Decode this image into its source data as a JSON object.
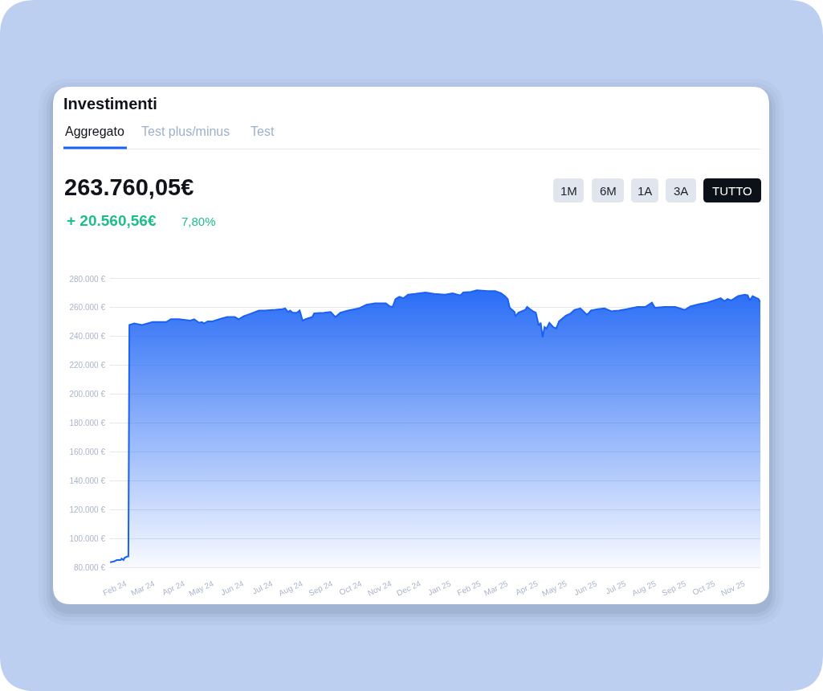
{
  "chart_data": {
    "type": "area",
    "title": "Investimenti",
    "subtitle": "263.760,05€",
    "annotations": [
      "Aggregato",
      "Test plus/minus",
      "Test",
      "+ 20.560,56€",
      "7,80%",
      "1M",
      "6M",
      "1A",
      "3A",
      "TUTTO"
    ],
    "color": "#1a62f5",
    "grid": "y",
    "xlim": [
      "2024-01-16",
      "2025-11-18"
    ],
    "xticks": [
      {
        "value": "2024-02-01",
        "label": "Feb 24"
      },
      {
        "value": "2024-03-01",
        "label": "Mar 24"
      },
      {
        "value": "2024-04-01",
        "label": "Apr 24"
      },
      {
        "value": "2024-05-01",
        "label": "May 24"
      },
      {
        "value": "2024-06-01",
        "label": "Jun 24"
      },
      {
        "value": "2024-07-01",
        "label": "Jul 24"
      },
      {
        "value": "2024-08-01",
        "label": "Aug 24"
      },
      {
        "value": "2024-09-01",
        "label": "Sep 24"
      },
      {
        "value": "2024-10-01",
        "label": "Oct 24"
      },
      {
        "value": "2024-11-01",
        "label": "Nov 24"
      },
      {
        "value": "2024-12-01",
        "label": "Dec 24"
      },
      {
        "value": "2025-01-01",
        "label": "Jan 25"
      },
      {
        "value": "2025-02-01",
        "label": "Feb 25"
      },
      {
        "value": "2025-03-01",
        "label": "Mar 25"
      },
      {
        "value": "2025-04-01",
        "label": "Apr 25"
      },
      {
        "value": "2025-05-01",
        "label": "May 25"
      },
      {
        "value": "2025-06-01",
        "label": "Jun 25"
      },
      {
        "value": "2025-07-01",
        "label": "Jul 25"
      },
      {
        "value": "2025-08-01",
        "label": "Aug 25"
      },
      {
        "value": "2025-09-01",
        "label": "Sep 25"
      },
      {
        "value": "2025-10-01",
        "label": "Oct 25"
      },
      {
        "value": "2025-11-01",
        "label": "Nov 25"
      }
    ],
    "ylim": [
      80000,
      280000
    ],
    "yticks": [
      {
        "value": 80000,
        "label": "80.000 €"
      },
      {
        "value": 100000,
        "label": "100.000 €"
      },
      {
        "value": 120000,
        "label": "120.000 €"
      },
      {
        "value": 140000,
        "label": "140.000 €"
      },
      {
        "value": 160000,
        "label": "160.000 €"
      },
      {
        "value": 180000,
        "label": "180.000 €"
      },
      {
        "value": 200000,
        "label": "200.000 €"
      },
      {
        "value": 220000,
        "label": "220.000 €"
      },
      {
        "value": 240000,
        "label": "240.000 €"
      },
      {
        "value": 260000,
        "label": "260.000 €"
      },
      {
        "value": 280000,
        "label": "280.000 €"
      }
    ],
    "x": [
      "2024-01-16",
      "2024-01-20",
      "2024-01-23",
      "2024-01-27",
      "2024-01-28",
      "2024-01-30",
      "2024-01-31",
      "2024-02-03",
      "2024-02-04",
      "2024-02-05",
      "2024-02-10",
      "2024-02-18",
      "2024-02-29",
      "2024-03-14",
      "2024-03-19",
      "2024-03-27",
      "2024-04-08",
      "2024-04-12",
      "2024-04-17",
      "2024-04-20",
      "2024-04-22",
      "2024-04-26",
      "2024-05-01",
      "2024-05-08",
      "2024-05-16",
      "2024-05-24",
      "2024-05-28",
      "2024-06-02",
      "2024-06-10",
      "2024-06-18",
      "2024-06-24",
      "2024-07-05",
      "2024-07-12",
      "2024-07-15",
      "2024-07-18",
      "2024-07-20",
      "2024-07-23",
      "2024-07-27",
      "2024-07-30",
      "2024-08-02",
      "2024-08-05",
      "2024-08-12",
      "2024-08-14",
      "2024-08-24",
      "2024-08-31",
      "2024-09-05",
      "2024-09-10",
      "2024-09-18",
      "2024-09-29",
      "2024-10-07",
      "2024-10-16",
      "2024-10-27",
      "2024-10-31",
      "2024-11-03",
      "2024-11-06",
      "2024-11-10",
      "2024-11-14",
      "2024-11-19",
      "2024-11-26",
      "2024-12-07",
      "2024-12-16",
      "2024-12-27",
      "2025-01-04",
      "2025-01-12",
      "2025-01-15",
      "2025-01-23",
      "2025-01-29",
      "2025-02-09",
      "2025-02-17",
      "2025-02-23",
      "2025-02-27",
      "2025-03-02",
      "2025-03-04",
      "2025-03-09",
      "2025-03-10",
      "2025-03-13",
      "2025-03-20",
      "2025-03-22",
      "2025-03-25",
      "2025-03-28",
      "2025-03-31",
      "2025-04-03",
      "2025-04-05",
      "2025-04-07",
      "2025-04-09",
      "2025-04-11",
      "2025-04-14",
      "2025-04-18",
      "2025-04-21",
      "2025-04-24",
      "2025-05-01",
      "2025-05-06",
      "2025-05-10",
      "2025-05-16",
      "2025-05-23",
      "2025-05-27",
      "2025-06-03",
      "2025-06-10",
      "2025-06-17",
      "2025-06-25",
      "2025-07-03",
      "2025-07-14",
      "2025-07-22",
      "2025-07-29",
      "2025-08-01",
      "2025-08-11",
      "2025-08-22",
      "2025-09-01",
      "2025-09-07",
      "2025-09-16",
      "2025-09-24",
      "2025-10-01",
      "2025-10-08",
      "2025-10-12",
      "2025-10-15",
      "2025-10-19",
      "2025-10-26",
      "2025-11-02",
      "2025-11-05",
      "2025-11-07",
      "2025-11-10",
      "2025-11-13",
      "2025-11-16",
      "2025-11-18"
    ],
    "values": [
      83500,
      84000,
      85000,
      85000,
      86000,
      85000,
      86500,
      87500,
      87500,
      248000,
      249000,
      248000,
      250000,
      250000,
      252000,
      252000,
      251000,
      252000,
      249500,
      250000,
      249000,
      250500,
      250500,
      252000,
      253500,
      253500,
      252000,
      254000,
      256000,
      258000,
      258000,
      258500,
      259000,
      259500,
      257000,
      258000,
      256500,
      256500,
      258000,
      251000,
      252000,
      253500,
      256000,
      256500,
      257000,
      253500,
      256500,
      258000,
      259500,
      262000,
      263000,
      263000,
      261000,
      260500,
      266000,
      267500,
      266500,
      269000,
      269500,
      270500,
      269500,
      269000,
      270000,
      268500,
      270500,
      271000,
      272000,
      271500,
      271500,
      270000,
      268000,
      266000,
      260000,
      257000,
      254000,
      256500,
      258500,
      260500,
      259000,
      257500,
      256500,
      247500,
      249500,
      239500,
      246500,
      245500,
      249500,
      246500,
      245500,
      250500,
      254500,
      256000,
      258500,
      259500,
      255000,
      258000,
      259000,
      259500,
      257500,
      258000,
      259000,
      260500,
      260500,
      263500,
      260000,
      260500,
      260500,
      258500,
      261000,
      262500,
      263500,
      265000,
      266500,
      264500,
      266000,
      265000,
      268000,
      269000,
      268500,
      265000,
      268000,
      267000,
      266000,
      264000
    ]
  }
}
